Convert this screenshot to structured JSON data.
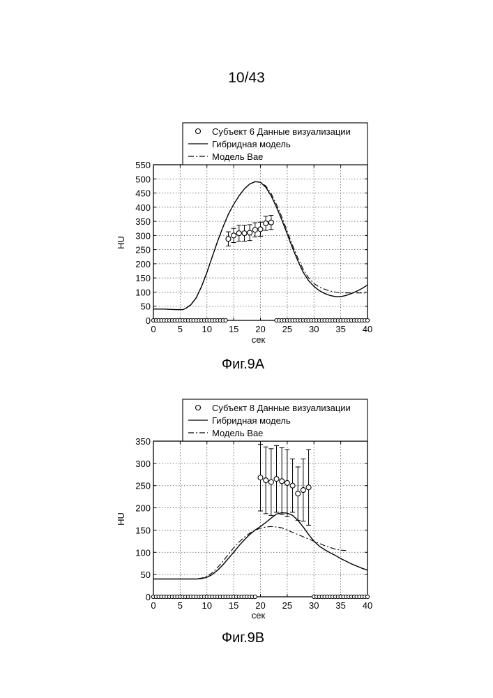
{
  "page_number": "10/43",
  "chart_data": [
    {
      "id": "9A",
      "type": "line",
      "caption": "Фиг.9А",
      "xlabel": "сек",
      "ylabel": "HU",
      "xlim": [
        0,
        40
      ],
      "ylim": [
        0,
        550
      ],
      "xticks": [
        0,
        5,
        10,
        15,
        20,
        25,
        30,
        35,
        40
      ],
      "yticks": [
        0,
        50,
        100,
        150,
        200,
        250,
        300,
        350,
        400,
        450,
        500,
        550
      ],
      "grid": true,
      "legend_position": "top",
      "legend": [
        "Субъект 6 Данные визуализации",
        "Гибридная модель",
        "Модель Bae"
      ],
      "series": [
        {
          "name": "Субъект 6 Данные визуализации",
          "style": "markers-errorbars",
          "points": [
            {
              "x": 14,
              "y": 288,
              "err": 25
            },
            {
              "x": 15,
              "y": 300,
              "err": 25
            },
            {
              "x": 16,
              "y": 308,
              "err": 28
            },
            {
              "x": 17,
              "y": 308,
              "err": 28
            },
            {
              "x": 18,
              "y": 310,
              "err": 28
            },
            {
              "x": 19,
              "y": 320,
              "err": 25
            },
            {
              "x": 20,
              "y": 322,
              "err": 25
            },
            {
              "x": 21,
              "y": 343,
              "err": 25
            },
            {
              "x": 22,
              "y": 346,
              "err": 25
            }
          ],
          "baseline_x": [
            0,
            0.5,
            1,
            1.5,
            2,
            2.5,
            3,
            3.5,
            4,
            4.5,
            5,
            5.5,
            6,
            6.5,
            7,
            7.5,
            8,
            8.5,
            9,
            9.5,
            10,
            10.5,
            11,
            11.5,
            12,
            12.5,
            13,
            13.5,
            23,
            23.5,
            24,
            24.5,
            25,
            25.5,
            26,
            26.5,
            27,
            27.5,
            28,
            28.5,
            29,
            29.5,
            30,
            30.5,
            31,
            31.5,
            32,
            32.5,
            33,
            33.5,
            34,
            34.5,
            35,
            35.5,
            36,
            36.5,
            37,
            37.5,
            38,
            38.5,
            39,
            39.5,
            40
          ]
        },
        {
          "name": "Гибридная модель",
          "style": "solid",
          "x": [
            0,
            2,
            4,
            5.5,
            6,
            7,
            8,
            9,
            10,
            11,
            12,
            13,
            14,
            15,
            16,
            17,
            18,
            19,
            20,
            21,
            22,
            23,
            24,
            25,
            26,
            27,
            28,
            29,
            30,
            31,
            32,
            33,
            34,
            35,
            36,
            37,
            38,
            39,
            40
          ],
          "y": [
            40,
            40,
            38,
            38,
            42,
            55,
            80,
            120,
            170,
            225,
            280,
            330,
            375,
            410,
            440,
            465,
            482,
            490,
            488,
            470,
            440,
            400,
            355,
            305,
            255,
            210,
            170,
            140,
            120,
            105,
            95,
            88,
            84,
            84,
            88,
            95,
            103,
            113,
            125
          ]
        },
        {
          "name": "Модель Bae",
          "style": "dashdot",
          "x": [
            0,
            2,
            4,
            5.5,
            6,
            7,
            8,
            9,
            10,
            11,
            12,
            13,
            14,
            15,
            16,
            17,
            18,
            19,
            20,
            21,
            22,
            23,
            24,
            25,
            26,
            27,
            28,
            29,
            30,
            31,
            32,
            33,
            34,
            35,
            36,
            37,
            38,
            39,
            40
          ],
          "y": [
            40,
            40,
            38,
            38,
            42,
            55,
            80,
            120,
            170,
            225,
            280,
            330,
            375,
            410,
            440,
            465,
            482,
            490,
            488,
            475,
            448,
            410,
            365,
            315,
            265,
            220,
            180,
            150,
            130,
            118,
            110,
            104,
            100,
            98,
            97,
            97,
            97,
            97,
            97
          ]
        }
      ]
    },
    {
      "id": "9B",
      "type": "line",
      "caption": "Фиг.9В",
      "xlabel": "сек",
      "ylabel": "HU",
      "xlim": [
        0,
        40
      ],
      "ylim": [
        0,
        350
      ],
      "xticks": [
        0,
        5,
        10,
        15,
        20,
        25,
        30,
        35,
        40
      ],
      "yticks": [
        0,
        50,
        100,
        150,
        200,
        250,
        300,
        350
      ],
      "grid": true,
      "legend_position": "top",
      "legend": [
        "Субъект 8 Данные визуализации",
        "Гибридная модель",
        "Модель Bae"
      ],
      "series": [
        {
          "name": "Субъект 8 Данные визуализации",
          "style": "markers-errorbars",
          "points": [
            {
              "x": 20,
              "y": 268,
              "err": 75
            },
            {
              "x": 21,
              "y": 262,
              "err": 75
            },
            {
              "x": 22,
              "y": 258,
              "err": 75
            },
            {
              "x": 23,
              "y": 265,
              "err": 75
            },
            {
              "x": 24,
              "y": 260,
              "err": 75
            },
            {
              "x": 25,
              "y": 256,
              "err": 75
            },
            {
              "x": 26,
              "y": 250,
              "err": 60
            },
            {
              "x": 27,
              "y": 232,
              "err": 60
            },
            {
              "x": 28,
              "y": 240,
              "err": 70
            },
            {
              "x": 29,
              "y": 246,
              "err": 85
            }
          ],
          "baseline_x": [
            0,
            0.5,
            1,
            1.5,
            2,
            2.5,
            3,
            3.5,
            4,
            4.5,
            5,
            5.5,
            6,
            6.5,
            7,
            7.5,
            8,
            8.5,
            9,
            9.5,
            10,
            10.5,
            11,
            11.5,
            12,
            12.5,
            13,
            13.5,
            14,
            14.5,
            15,
            15.5,
            16,
            16.5,
            17,
            17.5,
            18,
            18.5,
            19,
            30,
            30.5,
            31,
            31.5,
            32,
            32.5,
            33,
            33.5,
            34,
            34.5,
            35,
            35.5,
            36,
            36.5,
            37,
            37.5,
            38,
            38.5,
            39,
            39.5,
            40
          ]
        },
        {
          "name": "Гибридная модель",
          "style": "solid",
          "x": [
            0,
            5,
            8,
            9,
            10,
            11,
            12,
            13,
            14,
            15,
            16,
            17,
            18,
            19,
            20,
            21,
            22,
            23,
            24,
            25,
            26,
            27,
            28,
            29,
            30,
            31,
            32,
            33,
            34,
            35,
            36,
            37,
            38,
            39,
            40
          ],
          "y": [
            40,
            40,
            40,
            41,
            44,
            50,
            60,
            72,
            86,
            100,
            115,
            128,
            140,
            150,
            158,
            167,
            177,
            186,
            189,
            188,
            183,
            172,
            157,
            140,
            125,
            114,
            106,
            99,
            93,
            86,
            80,
            74,
            69,
            64,
            60
          ]
        },
        {
          "name": "Модель Bae",
          "style": "dashdot",
          "x": [
            0,
            5,
            8,
            9,
            10,
            11,
            12,
            13,
            14,
            15,
            16,
            17,
            18,
            19,
            20,
            21,
            22,
            23,
            24,
            25,
            26,
            27,
            28,
            29,
            30,
            31,
            32,
            33,
            34,
            35,
            36
          ],
          "y": [
            40,
            40,
            40,
            42,
            46,
            54,
            66,
            80,
            95,
            110,
            123,
            134,
            143,
            150,
            154,
            157,
            158,
            157,
            155,
            150,
            145,
            140,
            135,
            130,
            125,
            120,
            115,
            111,
            107,
            105,
            104
          ]
        }
      ]
    }
  ]
}
